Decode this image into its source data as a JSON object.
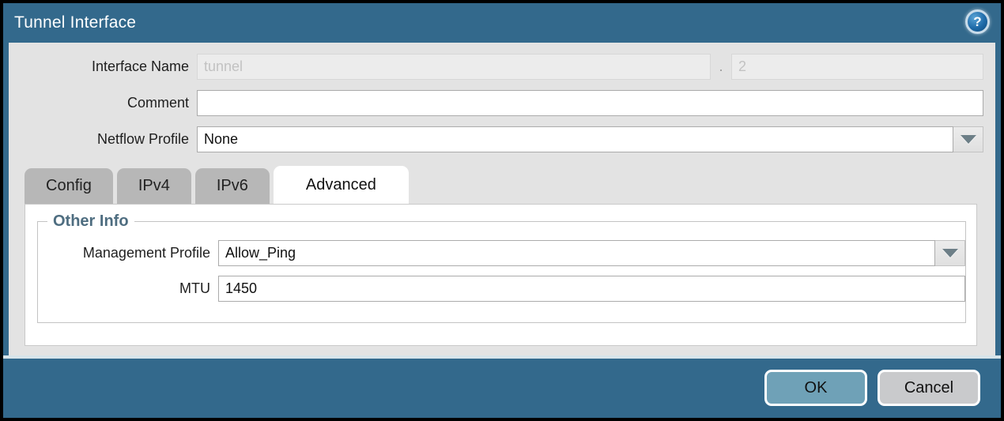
{
  "dialog": {
    "title": "Tunnel Interface"
  },
  "icons": {
    "help": "?",
    "dropdown_arrow": "triangle-down"
  },
  "form": {
    "interface_name": {
      "label": "Interface Name",
      "value": "tunnel",
      "separator": ".",
      "subinterface_value": "2"
    },
    "comment": {
      "label": "Comment",
      "value": ""
    },
    "netflow_profile": {
      "label": "Netflow Profile",
      "value": "None"
    }
  },
  "tabs": [
    {
      "label": "Config",
      "active": false
    },
    {
      "label": "IPv4",
      "active": false
    },
    {
      "label": "IPv6",
      "active": false
    },
    {
      "label": "Advanced",
      "active": true
    }
  ],
  "advanced_panel": {
    "section_title": "Other Info",
    "management_profile": {
      "label": "Management Profile",
      "value": "Allow_Ping"
    },
    "mtu": {
      "label": "MTU",
      "value": "1450"
    }
  },
  "footer": {
    "ok_label": "OK",
    "cancel_label": "Cancel"
  },
  "colors": {
    "frame_teal": "#33698c",
    "body_gray": "#e3e3e3",
    "ok_button": "#6fa1b7",
    "cancel_button": "#c9cacc",
    "section_title_text": "#4e6d80",
    "help_icon_blue": "#1e6aa8"
  }
}
